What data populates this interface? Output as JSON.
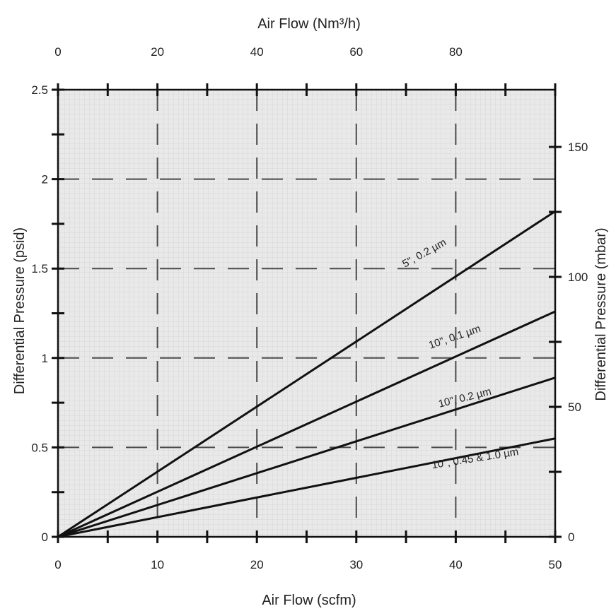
{
  "chart_data": {
    "type": "line",
    "title": "",
    "x_bottom": {
      "label": "Air Flow (scfm)",
      "range": [
        0,
        50
      ],
      "ticks": [
        "0",
        "10",
        "20",
        "30",
        "40",
        "50"
      ]
    },
    "x_top": {
      "label": "Air Flow (Nm³/h)",
      "range": [
        0,
        100
      ],
      "ticks": [
        "0",
        "20",
        "40",
        "60",
        "80"
      ]
    },
    "y_left": {
      "label": "Differential Pressure (psid)",
      "range": [
        0,
        2.5
      ],
      "ticks": [
        "0",
        "0.5",
        "1",
        "1.5",
        "2",
        "2.5"
      ]
    },
    "y_right": {
      "label": "Differential Pressure (mbar)",
      "range": [
        0,
        172
      ],
      "ticks": [
        "0",
        "50",
        "100",
        "150"
      ]
    },
    "grid": true,
    "series": [
      {
        "name": "5\", 0.2 µm",
        "x": [
          0,
          50
        ],
        "y": [
          0,
          1.82
        ],
        "label_at": [
          37,
          1.57
        ],
        "label_angle": -29
      },
      {
        "name": "10\", 0.1 µm",
        "x": [
          0,
          50
        ],
        "y": [
          0,
          1.26
        ],
        "label_at": [
          40,
          1.1
        ],
        "label_angle": -19
      },
      {
        "name": "10\", 0.2 µm",
        "x": [
          0,
          50
        ],
        "y": [
          0,
          0.89
        ],
        "label_at": [
          41,
          0.76
        ],
        "label_angle": -14
      },
      {
        "name": "10\", 0.45 & 1.0 µm",
        "x": [
          0,
          50
        ],
        "y": [
          0,
          0.55
        ],
        "label_at": [
          42,
          0.42
        ],
        "label_angle": -9
      }
    ]
  }
}
